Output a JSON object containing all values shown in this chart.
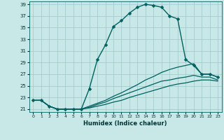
{
  "xlabel": "Humidex (Indice chaleur)",
  "ylabel": "",
  "background_color": "#c8e8e8",
  "grid_color": "#9ec8c8",
  "line_color": "#006060",
  "xlim": [
    -0.5,
    23.5
  ],
  "ylim": [
    20.5,
    39.5
  ],
  "yticks": [
    21,
    23,
    25,
    27,
    29,
    31,
    33,
    35,
    37,
    39
  ],
  "xticks": [
    0,
    1,
    2,
    3,
    4,
    5,
    6,
    7,
    8,
    9,
    10,
    11,
    12,
    13,
    14,
    15,
    16,
    17,
    18,
    19,
    20,
    21,
    22,
    23
  ],
  "series": [
    {
      "x": [
        0,
        1,
        2,
        3,
        4,
        5,
        6,
        7,
        8,
        9,
        10,
        11,
        12,
        13,
        14,
        15,
        16,
        17,
        18,
        19,
        20,
        21,
        22,
        23
      ],
      "y": [
        22.5,
        22.5,
        21.5,
        21.0,
        21.0,
        21.0,
        21.0,
        24.5,
        29.5,
        32.0,
        35.2,
        36.2,
        37.5,
        38.5,
        39.0,
        38.8,
        38.5,
        37.0,
        36.5,
        29.5,
        28.5,
        27.0,
        27.0,
        26.5
      ],
      "marker": "D",
      "linewidth": 1.0,
      "markersize": 2.5,
      "has_marker": true
    },
    {
      "x": [
        0,
        1,
        2,
        3,
        4,
        5,
        6,
        7,
        8,
        9,
        10,
        11,
        12,
        13,
        14,
        15,
        16,
        17,
        18,
        19,
        20,
        21,
        22,
        23
      ],
      "y": [
        22.5,
        22.5,
        21.5,
        21.0,
        21.0,
        21.0,
        21.0,
        21.5,
        22.0,
        22.5,
        23.2,
        23.8,
        24.5,
        25.2,
        26.0,
        26.6,
        27.3,
        27.8,
        28.2,
        28.5,
        28.8,
        27.0,
        27.0,
        26.5
      ],
      "marker": null,
      "linewidth": 0.9,
      "has_marker": false
    },
    {
      "x": [
        0,
        1,
        2,
        3,
        4,
        5,
        6,
        7,
        8,
        9,
        10,
        11,
        12,
        13,
        14,
        15,
        16,
        17,
        18,
        19,
        20,
        21,
        22,
        23
      ],
      "y": [
        22.5,
        22.5,
        21.5,
        21.0,
        21.0,
        21.0,
        21.0,
        21.3,
        21.8,
        22.2,
        22.8,
        23.3,
        23.8,
        24.3,
        24.8,
        25.3,
        25.8,
        26.0,
        26.3,
        26.5,
        26.8,
        26.5,
        26.5,
        26.0
      ],
      "marker": null,
      "linewidth": 0.9,
      "has_marker": false
    },
    {
      "x": [
        0,
        1,
        2,
        3,
        4,
        5,
        6,
        7,
        8,
        9,
        10,
        11,
        12,
        13,
        14,
        15,
        16,
        17,
        18,
        19,
        20,
        21,
        22,
        23
      ],
      "y": [
        22.5,
        22.5,
        21.5,
        21.0,
        21.0,
        21.0,
        21.0,
        21.2,
        21.5,
        21.8,
        22.2,
        22.5,
        23.0,
        23.4,
        23.8,
        24.2,
        24.6,
        25.0,
        25.3,
        25.5,
        25.8,
        26.0,
        26.0,
        25.8
      ],
      "marker": null,
      "linewidth": 0.9,
      "has_marker": false
    }
  ]
}
